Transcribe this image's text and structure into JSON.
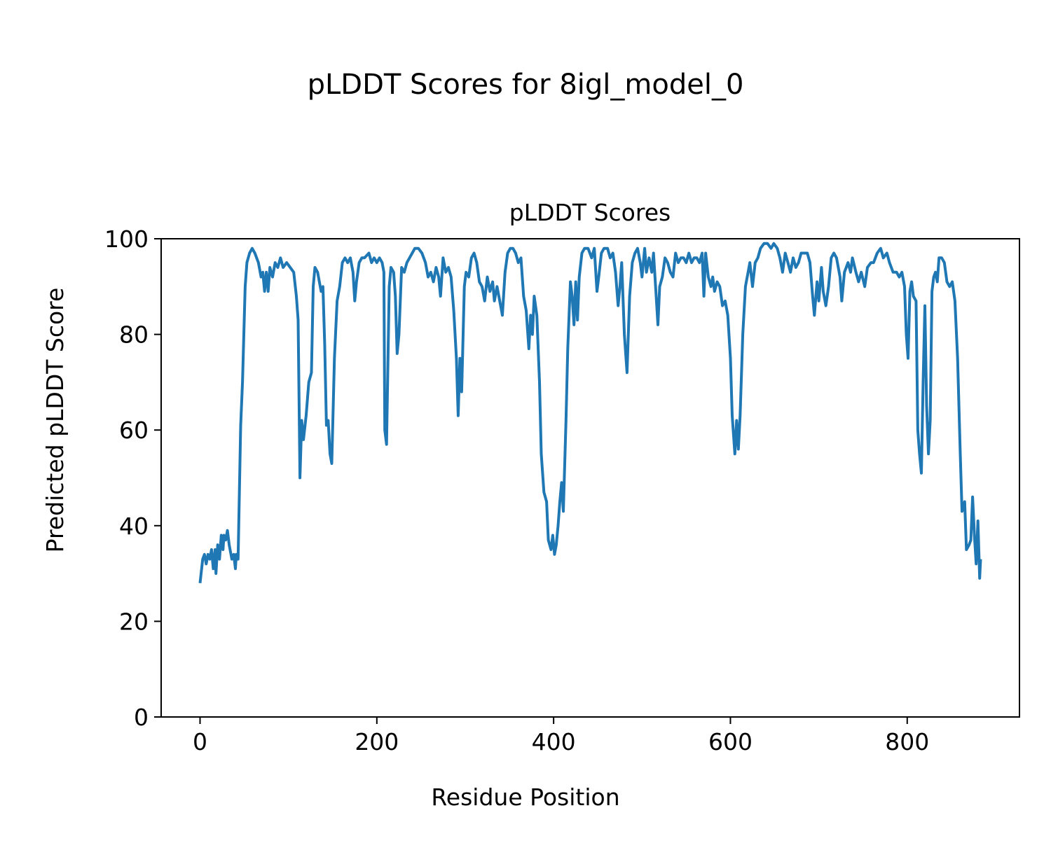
{
  "chart_data": {
    "type": "line",
    "suptitle": "pLDDT Scores for 8igl_model_0",
    "title": "pLDDT Scores",
    "xlabel": "Residue Position",
    "ylabel": "Predicted pLDDT Score",
    "xlim": [
      -44,
      927
    ],
    "ylim": [
      0,
      100
    ],
    "xticks": [
      0,
      200,
      400,
      600,
      800
    ],
    "yticks": [
      0,
      20,
      40,
      60,
      80,
      100
    ],
    "grid": false,
    "series": [
      {
        "name": "pLDDT",
        "color": "#1f77b4",
        "points": [
          [
            0,
            28
          ],
          [
            3,
            33
          ],
          [
            5,
            34
          ],
          [
            7,
            32
          ],
          [
            9,
            34
          ],
          [
            11,
            33
          ],
          [
            13,
            35
          ],
          [
            15,
            31
          ],
          [
            17,
            35
          ],
          [
            18,
            30
          ],
          [
            20,
            36
          ],
          [
            22,
            33
          ],
          [
            24,
            38
          ],
          [
            26,
            35
          ],
          [
            27,
            38
          ],
          [
            29,
            37
          ],
          [
            31,
            39
          ],
          [
            33,
            36
          ],
          [
            36,
            33
          ],
          [
            38,
            34
          ],
          [
            40,
            31
          ],
          [
            41,
            34
          ],
          [
            43,
            33
          ],
          [
            46,
            61
          ],
          [
            48,
            70
          ],
          [
            51,
            90
          ],
          [
            53,
            95
          ],
          [
            56,
            97
          ],
          [
            59,
            98
          ],
          [
            62,
            97
          ],
          [
            66,
            95
          ],
          [
            69,
            92
          ],
          [
            71,
            93
          ],
          [
            73,
            89
          ],
          [
            75,
            93
          ],
          [
            77,
            89
          ],
          [
            79,
            94
          ],
          [
            82,
            92
          ],
          [
            85,
            95
          ],
          [
            88,
            94
          ],
          [
            91,
            96
          ],
          [
            94,
            94
          ],
          [
            98,
            95
          ],
          [
            102,
            94
          ],
          [
            106,
            93
          ],
          [
            109,
            88
          ],
          [
            111,
            83
          ],
          [
            113,
            50
          ],
          [
            115,
            62
          ],
          [
            117,
            58
          ],
          [
            120,
            63
          ],
          [
            123,
            70
          ],
          [
            126,
            72
          ],
          [
            128,
            90
          ],
          [
            130,
            94
          ],
          [
            133,
            93
          ],
          [
            135,
            91
          ],
          [
            137,
            89
          ],
          [
            139,
            90
          ],
          [
            141,
            78
          ],
          [
            143,
            61
          ],
          [
            145,
            62
          ],
          [
            147,
            55
          ],
          [
            149,
            53
          ],
          [
            152,
            75
          ],
          [
            155,
            87
          ],
          [
            158,
            90
          ],
          [
            161,
            95
          ],
          [
            164,
            96
          ],
          [
            167,
            95
          ],
          [
            170,
            96
          ],
          [
            173,
            93
          ],
          [
            175,
            87
          ],
          [
            177,
            91
          ],
          [
            180,
            95
          ],
          [
            183,
            96
          ],
          [
            186,
            96
          ],
          [
            191,
            97
          ],
          [
            194,
            95
          ],
          [
            197,
            96
          ],
          [
            200,
            95
          ],
          [
            203,
            96
          ],
          [
            206,
            95
          ],
          [
            208,
            93
          ],
          [
            209,
            60
          ],
          [
            211,
            57
          ],
          [
            214,
            90
          ],
          [
            216,
            94
          ],
          [
            219,
            93
          ],
          [
            221,
            88
          ],
          [
            223,
            76
          ],
          [
            225,
            80
          ],
          [
            228,
            94
          ],
          [
            231,
            93
          ],
          [
            234,
            95
          ],
          [
            237,
            96
          ],
          [
            240,
            97
          ],
          [
            243,
            98
          ],
          [
            247,
            98
          ],
          [
            251,
            97
          ],
          [
            255,
            95
          ],
          [
            258,
            92
          ],
          [
            261,
            93
          ],
          [
            264,
            91
          ],
          [
            267,
            94
          ],
          [
            270,
            92
          ],
          [
            272,
            88
          ],
          [
            275,
            96
          ],
          [
            278,
            93
          ],
          [
            281,
            94
          ],
          [
            284,
            92
          ],
          [
            287,
            85
          ],
          [
            290,
            75
          ],
          [
            292,
            63
          ],
          [
            294,
            75
          ],
          [
            296,
            68
          ],
          [
            299,
            90
          ],
          [
            301,
            93
          ],
          [
            304,
            92
          ],
          [
            307,
            96
          ],
          [
            310,
            97
          ],
          [
            313,
            95
          ],
          [
            316,
            91
          ],
          [
            319,
            90
          ],
          [
            322,
            87
          ],
          [
            325,
            92
          ],
          [
            328,
            89
          ],
          [
            331,
            91
          ],
          [
            333,
            87
          ],
          [
            336,
            90
          ],
          [
            339,
            87
          ],
          [
            342,
            84
          ],
          [
            345,
            93
          ],
          [
            348,
            97
          ],
          [
            351,
            98
          ],
          [
            354,
            98
          ],
          [
            357,
            97
          ],
          [
            360,
            95
          ],
          [
            363,
            96
          ],
          [
            366,
            88
          ],
          [
            369,
            85
          ],
          [
            372,
            77
          ],
          [
            374,
            84
          ],
          [
            376,
            80
          ],
          [
            378,
            88
          ],
          [
            381,
            84
          ],
          [
            384,
            70
          ],
          [
            386,
            55
          ],
          [
            389,
            47
          ],
          [
            392,
            45
          ],
          [
            394,
            37
          ],
          [
            397,
            35
          ],
          [
            399,
            38
          ],
          [
            401,
            34
          ],
          [
            403,
            36
          ],
          [
            405,
            40
          ],
          [
            407,
            45
          ],
          [
            409,
            49
          ],
          [
            411,
            43
          ],
          [
            414,
            62
          ],
          [
            416,
            77
          ],
          [
            419,
            91
          ],
          [
            421,
            88
          ],
          [
            423,
            82
          ],
          [
            425,
            91
          ],
          [
            427,
            83
          ],
          [
            429,
            92
          ],
          [
            432,
            97
          ],
          [
            435,
            98
          ],
          [
            439,
            98
          ],
          [
            443,
            96
          ],
          [
            446,
            98
          ],
          [
            449,
            89
          ],
          [
            451,
            92
          ],
          [
            454,
            97
          ],
          [
            457,
            98
          ],
          [
            461,
            98
          ],
          [
            464,
            96
          ],
          [
            467,
            97
          ],
          [
            470,
            93
          ],
          [
            473,
            86
          ],
          [
            475,
            90
          ],
          [
            477,
            95
          ],
          [
            480,
            80
          ],
          [
            483,
            72
          ],
          [
            486,
            88
          ],
          [
            489,
            95
          ],
          [
            492,
            97
          ],
          [
            495,
            98
          ],
          [
            498,
            95
          ],
          [
            500,
            92
          ],
          [
            503,
            98
          ],
          [
            505,
            93
          ],
          [
            508,
            96
          ],
          [
            511,
            93
          ],
          [
            513,
            97
          ],
          [
            516,
            88
          ],
          [
            518,
            82
          ],
          [
            520,
            90
          ],
          [
            523,
            92
          ],
          [
            526,
            96
          ],
          [
            529,
            95
          ],
          [
            532,
            93
          ],
          [
            535,
            92
          ],
          [
            538,
            97
          ],
          [
            541,
            95
          ],
          [
            544,
            96
          ],
          [
            547,
            96
          ],
          [
            550,
            95
          ],
          [
            553,
            97
          ],
          [
            556,
            95
          ],
          [
            559,
            96
          ],
          [
            562,
            96
          ],
          [
            565,
            95
          ],
          [
            568,
            97
          ],
          [
            570,
            88
          ],
          [
            572,
            97
          ],
          [
            575,
            92
          ],
          [
            578,
            90
          ],
          [
            580,
            92
          ],
          [
            582,
            89
          ],
          [
            585,
            91
          ],
          [
            588,
            90
          ],
          [
            591,
            86
          ],
          [
            594,
            87
          ],
          [
            597,
            84
          ],
          [
            600,
            75
          ],
          [
            602,
            63
          ],
          [
            605,
            55
          ],
          [
            607,
            62
          ],
          [
            609,
            56
          ],
          [
            611,
            63
          ],
          [
            614,
            80
          ],
          [
            617,
            90
          ],
          [
            620,
            93
          ],
          [
            622,
            95
          ],
          [
            625,
            90
          ],
          [
            628,
            95
          ],
          [
            631,
            96
          ],
          [
            634,
            98
          ],
          [
            638,
            99
          ],
          [
            642,
            99
          ],
          [
            646,
            98
          ],
          [
            649,
            99
          ],
          [
            653,
            98
          ],
          [
            656,
            96
          ],
          [
            659,
            93
          ],
          [
            662,
            97
          ],
          [
            665,
            95
          ],
          [
            668,
            93
          ],
          [
            671,
            96
          ],
          [
            674,
            94
          ],
          [
            677,
            95
          ],
          [
            680,
            97
          ],
          [
            684,
            97
          ],
          [
            687,
            97
          ],
          [
            690,
            95
          ],
          [
            693,
            88
          ],
          [
            695,
            84
          ],
          [
            698,
            91
          ],
          [
            700,
            87
          ],
          [
            703,
            94
          ],
          [
            705,
            89
          ],
          [
            708,
            86
          ],
          [
            711,
            90
          ],
          [
            714,
            96
          ],
          [
            717,
            97
          ],
          [
            720,
            96
          ],
          [
            724,
            92
          ],
          [
            726,
            87
          ],
          [
            729,
            93
          ],
          [
            733,
            95
          ],
          [
            736,
            93
          ],
          [
            738,
            96
          ],
          [
            742,
            93
          ],
          [
            745,
            91
          ],
          [
            748,
            93
          ],
          [
            752,
            90
          ],
          [
            755,
            94
          ],
          [
            759,
            95
          ],
          [
            762,
            95
          ],
          [
            766,
            97
          ],
          [
            770,
            98
          ],
          [
            773,
            96
          ],
          [
            777,
            97
          ],
          [
            780,
            95
          ],
          [
            784,
            93
          ],
          [
            788,
            93
          ],
          [
            791,
            92
          ],
          [
            794,
            93
          ],
          [
            797,
            90
          ],
          [
            799,
            80
          ],
          [
            801,
            75
          ],
          [
            803,
            89
          ],
          [
            805,
            91
          ],
          [
            807,
            88
          ],
          [
            810,
            87
          ],
          [
            812,
            60
          ],
          [
            814,
            55
          ],
          [
            816,
            51
          ],
          [
            818,
            70
          ],
          [
            820,
            86
          ],
          [
            822,
            65
          ],
          [
            824,
            55
          ],
          [
            826,
            62
          ],
          [
            828,
            89
          ],
          [
            830,
            92
          ],
          [
            832,
            93
          ],
          [
            834,
            91
          ],
          [
            836,
            96
          ],
          [
            839,
            96
          ],
          [
            842,
            95
          ],
          [
            845,
            91
          ],
          [
            848,
            90
          ],
          [
            851,
            91
          ],
          [
            854,
            87
          ],
          [
            857,
            75
          ],
          [
            860,
            55
          ],
          [
            862,
            43
          ],
          [
            865,
            45
          ],
          [
            867,
            35
          ],
          [
            870,
            36
          ],
          [
            872,
            37
          ],
          [
            874,
            46
          ],
          [
            876,
            38
          ],
          [
            878,
            32
          ],
          [
            880,
            41
          ],
          [
            882,
            29
          ],
          [
            883,
            33
          ]
        ]
      }
    ]
  }
}
